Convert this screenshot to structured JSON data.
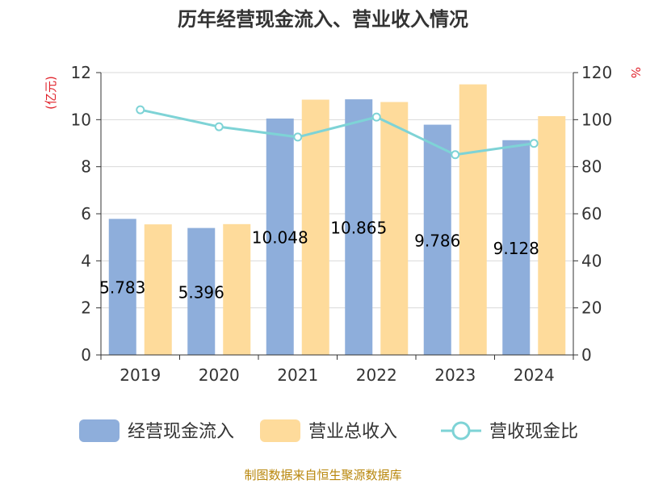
{
  "chart_data": {
    "type": "bar",
    "title": "历年经营现金流入、营业收入情况",
    "categories": [
      "2019",
      "2020",
      "2021",
      "2022",
      "2023",
      "2024"
    ],
    "series": [
      {
        "name": "经营现金流入",
        "kind": "bar",
        "axis": "left",
        "color": "#8eaedb",
        "values": [
          5.783,
          5.396,
          10.048,
          10.865,
          9.786,
          9.128
        ],
        "labels": [
          "5.783",
          "5.396",
          "10.048",
          "10.865",
          "9.786",
          "9.128"
        ]
      },
      {
        "name": "营业总收入",
        "kind": "bar",
        "axis": "left",
        "color": "#fedb9b",
        "values": [
          5.55,
          5.56,
          10.85,
          10.75,
          11.5,
          10.15
        ]
      },
      {
        "name": "营收现金比",
        "kind": "line",
        "axis": "right",
        "color": "#7ed3d6",
        "values": [
          104.2,
          97.0,
          92.6,
          101.1,
          85.1,
          89.9
        ]
      }
    ],
    "y_left": {
      "label": "(亿元)",
      "ylim": [
        0,
        12
      ],
      "ticks": [
        "0",
        "2",
        "4",
        "6",
        "8",
        "10",
        "12"
      ]
    },
    "y_right": {
      "label": "%",
      "ylim": [
        0,
        120
      ],
      "ticks": [
        "0",
        "20",
        "40",
        "60",
        "80",
        "100",
        "120"
      ]
    },
    "grid": true,
    "legend_position": "bottom"
  },
  "source": "制图数据来自恒生聚源数据库"
}
